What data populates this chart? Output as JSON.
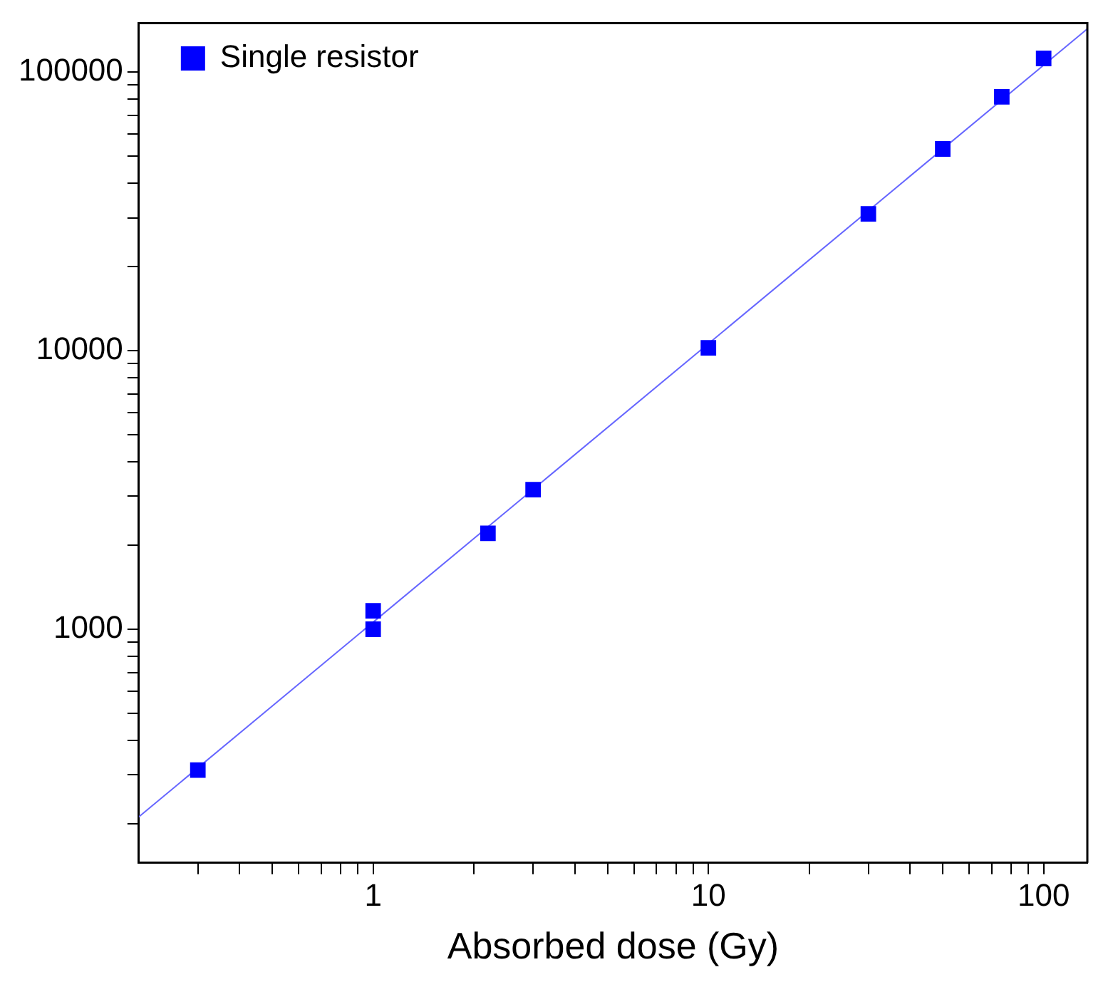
{
  "chart_data": {
    "type": "scatter",
    "xlabel": "Absorbed dose (Gy)",
    "log": "xy",
    "legend": "top left",
    "marker": "square",
    "grid": false,
    "xlim": [
      0.2,
      135
    ],
    "ylim": [
      145,
      150000
    ],
    "xticks": [
      {
        "value": 0.3,
        "label": null
      },
      {
        "value": 0.4,
        "label": null
      },
      {
        "value": 0.5,
        "label": null
      },
      {
        "value": 0.6,
        "label": null
      },
      {
        "value": 0.7,
        "label": null
      },
      {
        "value": 0.8,
        "label": null
      },
      {
        "value": 0.9,
        "label": null
      },
      1,
      {
        "value": 2,
        "label": null
      },
      {
        "value": 3,
        "label": null
      },
      {
        "value": 4,
        "label": null
      },
      {
        "value": 5,
        "label": null
      },
      {
        "value": 6,
        "label": null
      },
      {
        "value": 7,
        "label": null
      },
      {
        "value": 8,
        "label": null
      },
      {
        "value": 9,
        "label": null
      },
      10,
      {
        "value": 20,
        "label": null
      },
      {
        "value": 30,
        "label": null
      },
      {
        "value": 40,
        "label": null
      },
      {
        "value": 50,
        "label": null
      },
      {
        "value": 60,
        "label": null
      },
      {
        "value": 70,
        "label": null
      },
      {
        "value": 80,
        "label": null
      },
      {
        "value": 90,
        "label": null
      },
      100
    ],
    "yticks": [
      {
        "value": 200,
        "label": null
      },
      {
        "value": 300,
        "label": null
      },
      {
        "value": 400,
        "label": null
      },
      {
        "value": 500,
        "label": null
      },
      {
        "value": 600,
        "label": null
      },
      {
        "value": 700,
        "label": null
      },
      {
        "value": 800,
        "label": null
      },
      {
        "value": 900,
        "label": null
      },
      1000,
      {
        "value": 2000,
        "label": null
      },
      {
        "value": 3000,
        "label": null
      },
      {
        "value": 4000,
        "label": null
      },
      {
        "value": 5000,
        "label": null
      },
      {
        "value": 6000,
        "label": null
      },
      {
        "value": 7000,
        "label": null
      },
      {
        "value": 8000,
        "label": null
      },
      {
        "value": 9000,
        "label": null
      },
      10000,
      {
        "value": 20000,
        "label": null
      },
      {
        "value": 30000,
        "label": null
      },
      {
        "value": 40000,
        "label": null
      },
      {
        "value": 50000,
        "label": null
      },
      {
        "value": 60000,
        "label": null
      },
      {
        "value": 70000,
        "label": null
      },
      {
        "value": 80000,
        "label": null
      },
      {
        "value": 90000,
        "label": null
      },
      100000
    ],
    "series": [
      {
        "name": "Single resistor",
        "color": "#0000ff",
        "x": [
          0.3,
          1,
          1,
          2.2,
          3,
          10,
          30,
          50,
          75,
          100
        ],
        "values": [
          312,
          1164,
          1000,
          2210,
          3170,
          10240,
          31000,
          53000,
          81500,
          112000
        ]
      },
      {
        "type": "line",
        "color": "#6666ff",
        "marker": "none",
        "x": [
          0.2,
          135
        ],
        "values": [
          212,
          143000
        ]
      }
    ]
  }
}
